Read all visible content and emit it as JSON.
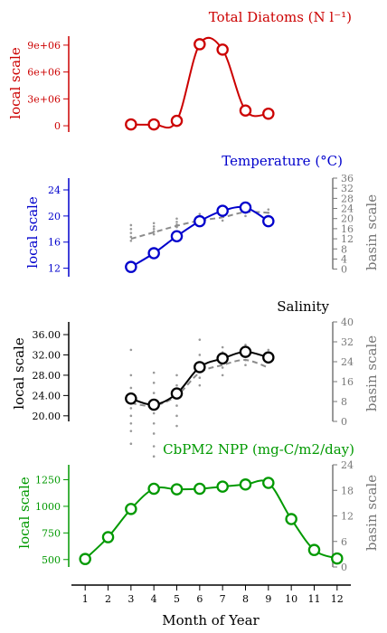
{
  "chart_data": [
    {
      "type": "line",
      "title": "Total Diatoms (N l⁻¹)",
      "ylabel": "local scale",
      "color": "#cc0000",
      "ylim": [
        -700000,
        10000000
      ],
      "yticks": [
        "0",
        "3e+06",
        "6e+06",
        "9e+06"
      ],
      "ytick_values": [
        0,
        3000000,
        6000000,
        9000000
      ],
      "x": [
        3,
        4,
        5,
        6,
        7,
        8,
        9
      ],
      "values": [
        150000,
        150000,
        550000,
        9100000,
        8500000,
        1700000,
        1350000
      ]
    },
    {
      "type": "line",
      "title": "Temperature (°C)",
      "ylabel": "local scale",
      "y2label": "basin scale",
      "color": "#0000cc",
      "ylim": [
        10.7,
        25.8
      ],
      "yticks": [
        "12",
        "16",
        "20",
        "24"
      ],
      "ytick_values": [
        12,
        16,
        20,
        24
      ],
      "y2lim": [
        -3,
        36
      ],
      "y2ticks": [
        "0",
        "4",
        "8",
        "12",
        "16",
        "20",
        "24",
        "28",
        "32",
        "36"
      ],
      "y2tick_values": [
        0,
        4,
        8,
        12,
        16,
        20,
        24,
        28,
        32,
        36
      ],
      "x": [
        3,
        4,
        5,
        6,
        7,
        8,
        9
      ],
      "values": [
        12.2,
        14.3,
        16.9,
        19.2,
        20.8,
        21.3,
        19.2
      ],
      "basin_mean": [
        16.5,
        17.5,
        18.5,
        19.3,
        19.8,
        20.6,
        20.5
      ],
      "basin_scatter": [
        [
          3,
          [
            16.2,
            16.8,
            17.4,
            18.0,
            18.6
          ]
        ],
        [
          4,
          [
            17.2,
            17.6,
            18.0,
            18.4,
            18.9
          ]
        ],
        [
          5,
          [
            18.3,
            18.7,
            19.1,
            19.6
          ]
        ],
        [
          6,
          [
            19.1,
            19.5,
            19.9,
            20.3
          ]
        ],
        [
          7,
          [
            19.3,
            19.9,
            20.4,
            20.9
          ]
        ],
        [
          8,
          [
            20.0,
            20.5,
            21.0,
            21.4
          ]
        ],
        [
          9,
          [
            20.0,
            20.5,
            21.0
          ]
        ]
      ]
    },
    {
      "type": "line",
      "title": "Salinity",
      "ylabel": "local scale",
      "y2label": "basin scale",
      "color": "#000000",
      "ylim": [
        18.9,
        38.5
      ],
      "yticks": [
        "20.00",
        "24.00",
        "28.00",
        "32.00",
        "36.00"
      ],
      "ytick_values": [
        20,
        24,
        28,
        32,
        36
      ],
      "y2lim": [
        0,
        40
      ],
      "y2ticks": [
        "0",
        "8",
        "16",
        "24",
        "32",
        "40"
      ],
      "y2tick_values": [
        0,
        8,
        16,
        24,
        32,
        40
      ],
      "x": [
        3,
        4,
        5,
        6,
        7,
        8,
        9
      ],
      "values": [
        23.4,
        22.2,
        24.4,
        29.6,
        31.3,
        32.6,
        31.5
      ],
      "basin_mean": [
        22.5,
        22.0,
        24.0,
        28.5,
        30.0,
        31.0,
        29.5
      ],
      "basin_scatter": [
        [
          3,
          [
            14.5,
            17.0,
            18.5,
            20.0,
            21.5,
            23.0,
            25.5,
            28.0,
            33.0
          ]
        ],
        [
          4,
          [
            12.0,
            14.0,
            16.5,
            18.5,
            20.5,
            22.5,
            24.5,
            26.5,
            28.5
          ]
        ],
        [
          5,
          [
            18.0,
            20.0,
            22.0,
            24.0,
            26.0,
            28.0
          ]
        ],
        [
          6,
          [
            26.0,
            27.5,
            29.0,
            30.5,
            32.0,
            35.0
          ]
        ],
        [
          7,
          [
            28.0,
            29.5,
            30.5,
            31.5,
            32.5,
            33.5
          ]
        ],
        [
          8,
          [
            30.0,
            31.0,
            32.0,
            32.5,
            33.5,
            34.0
          ]
        ],
        [
          9,
          [
            30.5,
            31.5,
            32.5,
            33.0
          ]
        ]
      ]
    },
    {
      "type": "line",
      "title": "CbPM2 NPP (mg-C/m2/day)",
      "ylabel": "local scale",
      "y2label": "basin scale",
      "color": "#009900",
      "ylim": [
        430,
        1390
      ],
      "yticks": [
        "500",
        "750",
        "1000",
        "1250"
      ],
      "ytick_values": [
        500,
        750,
        1000,
        1250
      ],
      "y2lim": [
        0,
        24
      ],
      "y2ticks": [
        "0",
        "6",
        "12",
        "18",
        "24"
      ],
      "y2tick_values": [
        0,
        6,
        12,
        18,
        24
      ],
      "x": [
        1,
        2,
        3,
        4,
        5,
        6,
        7,
        8,
        9,
        10,
        11,
        12
      ],
      "values": [
        505,
        710,
        975,
        1165,
        1160,
        1165,
        1185,
        1205,
        1220,
        880,
        590,
        510
      ]
    }
  ],
  "xaxis": {
    "label": "Month of Year",
    "ticks": [
      "1",
      "2",
      "3",
      "4",
      "5",
      "6",
      "7",
      "8",
      "9",
      "10",
      "11",
      "12"
    ],
    "xlim": [
      0.4,
      12.6
    ]
  }
}
